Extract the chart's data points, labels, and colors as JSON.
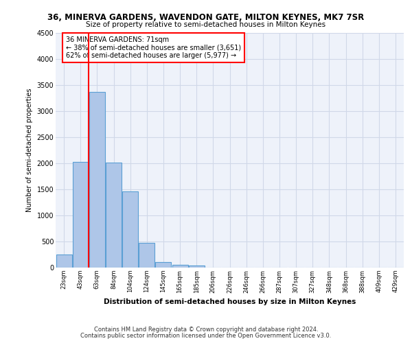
{
  "title": "36, MINERVA GARDENS, WAVENDON GATE, MILTON KEYNES, MK7 7SR",
  "subtitle": "Size of property relative to semi-detached houses in Milton Keynes",
  "xlabel": "Distribution of semi-detached houses by size in Milton Keynes",
  "ylabel": "Number of semi-detached properties",
  "categories": [
    "23sqm",
    "43sqm",
    "63sqm",
    "84sqm",
    "104sqm",
    "124sqm",
    "145sqm",
    "165sqm",
    "185sqm",
    "206sqm",
    "226sqm",
    "246sqm",
    "266sqm",
    "287sqm",
    "307sqm",
    "327sqm",
    "348sqm",
    "368sqm",
    "388sqm",
    "409sqm",
    "429sqm"
  ],
  "values": [
    250,
    2020,
    3370,
    2010,
    1460,
    470,
    100,
    55,
    45,
    0,
    0,
    0,
    0,
    0,
    0,
    0,
    0,
    0,
    0,
    0,
    0
  ],
  "bar_color": "#aec6e8",
  "bar_edge_color": "#5a9fd4",
  "vline_color": "red",
  "annotation_text": "36 MINERVA GARDENS: 71sqm\n← 38% of semi-detached houses are smaller (3,651)\n62% of semi-detached houses are larger (5,977) →",
  "annotation_box_color": "white",
  "annotation_border_color": "red",
  "ylim": [
    0,
    4500
  ],
  "yticks": [
    0,
    500,
    1000,
    1500,
    2000,
    2500,
    3000,
    3500,
    4000,
    4500
  ],
  "grid_color": "#d0d8e8",
  "background_color": "#eef2fa",
  "footer_line1": "Contains HM Land Registry data © Crown copyright and database right 2024.",
  "footer_line2": "Contains public sector information licensed under the Open Government Licence v3.0."
}
